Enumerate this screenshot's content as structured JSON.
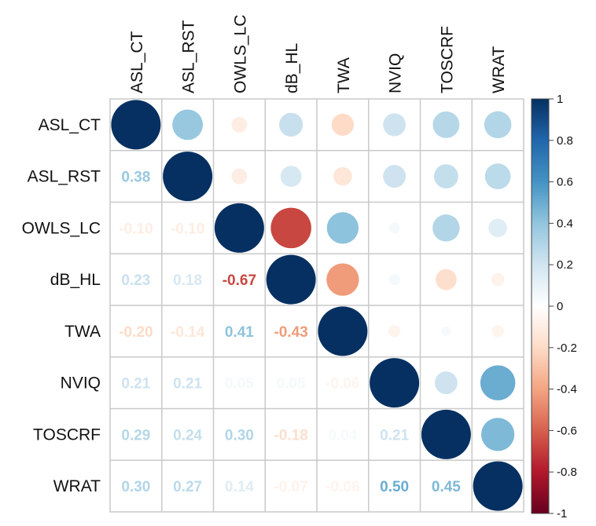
{
  "chart_data": {
    "type": "heatmap",
    "variables": [
      "ASL_CT",
      "ASL_RST",
      "OWLS_LC",
      "dB_HL",
      "TWA",
      "NVIQ",
      "TOSCRF",
      "WRAT"
    ],
    "matrix": [
      [
        1.0,
        0.38,
        -0.1,
        0.23,
        -0.2,
        0.21,
        0.29,
        0.3
      ],
      [
        0.38,
        1.0,
        -0.1,
        0.18,
        -0.14,
        0.21,
        0.24,
        0.27
      ],
      [
        -0.1,
        -0.1,
        1.0,
        -0.67,
        0.41,
        0.05,
        0.3,
        0.14
      ],
      [
        0.23,
        0.18,
        -0.67,
        1.0,
        -0.43,
        0.05,
        -0.18,
        -0.07
      ],
      [
        -0.2,
        -0.14,
        0.41,
        -0.43,
        1.0,
        -0.06,
        0.04,
        -0.06
      ],
      [
        0.21,
        0.21,
        0.05,
        0.05,
        -0.06,
        1.0,
        0.21,
        0.5
      ],
      [
        0.29,
        0.24,
        0.3,
        -0.18,
        0.04,
        0.21,
        1.0,
        0.45
      ],
      [
        0.3,
        0.27,
        0.14,
        -0.07,
        -0.06,
        0.5,
        0.45,
        1.0
      ]
    ],
    "lower_labels": [
      [],
      [
        "0.38"
      ],
      [
        "-0.10",
        "-0.10"
      ],
      [
        "0.23",
        "0.18",
        "-0.67"
      ],
      [
        "-0.20",
        "-0.14",
        "0.41",
        "-0.43"
      ],
      [
        "0.21",
        "0.21",
        "0.05",
        "0.05",
        "-0.06"
      ],
      [
        "0.29",
        "0.24",
        "0.30",
        "-0.18",
        "0.04",
        "0.21"
      ],
      [
        "0.30",
        "0.27",
        "0.14",
        "-0.07",
        "-0.06",
        "0.50",
        "0.45"
      ]
    ],
    "upper": "circle",
    "lower": "number",
    "diagonal": "circle",
    "colorbar": {
      "min": -1,
      "max": 1,
      "ticks": [
        "1",
        "0.8",
        "0.6",
        "0.4",
        "0.2",
        "0",
        "-0.2",
        "-0.4",
        "-0.6",
        "-0.8",
        "-1"
      ],
      "colors": [
        "#67001F",
        "#B2182B",
        "#D6604D",
        "#F4A582",
        "#FDDBC7",
        "#FFFFFF",
        "#D1E5F0",
        "#92C5DE",
        "#4393C3",
        "#2166AC",
        "#053061"
      ]
    }
  }
}
